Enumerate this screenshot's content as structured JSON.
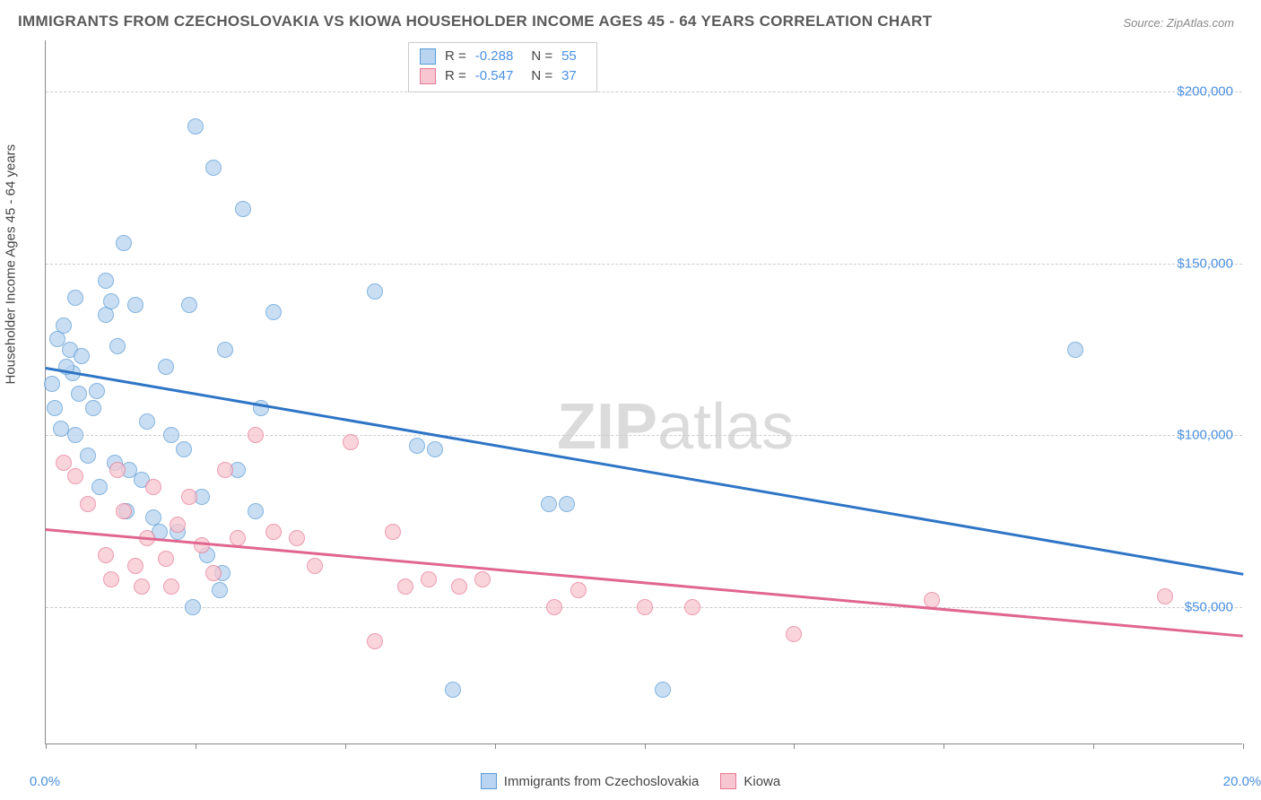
{
  "title": "IMMIGRANTS FROM CZECHOSLOVAKIA VS KIOWA HOUSEHOLDER INCOME AGES 45 - 64 YEARS CORRELATION CHART",
  "source_label": "Source: ZipAtlas.com",
  "watermark_bold": "ZIP",
  "watermark_rest": "atlas",
  "chart": {
    "type": "scatter-with-trend",
    "background_color": "#ffffff",
    "grid_color": "#cccccc",
    "axis_color": "#888888",
    "tick_label_color": "#4a90e2",
    "text_color": "#444444",
    "xlim": [
      0,
      20
    ],
    "ylim": [
      10000,
      215000
    ],
    "ylabel": "Householder Income Ages 45 - 64 years",
    "label_fontsize": 15,
    "title_fontsize": 17,
    "x_ticks": [
      0,
      2.5,
      5,
      7.5,
      10,
      12.5,
      15,
      17.5,
      20
    ],
    "x_tick_labels": {
      "0": "0.0%",
      "20": "20.0%"
    },
    "y_gridlines": [
      50000,
      100000,
      150000,
      200000
    ],
    "y_tick_labels": {
      "50000": "$50,000",
      "100000": "$100,000",
      "150000": "$150,000",
      "200000": "$200,000"
    },
    "point_radius": 9,
    "point_stroke_width": 1,
    "series": [
      {
        "name": "Immigrants from Czechoslovakia",
        "fill": "#b8d4f0",
        "stroke": "#5b9bd5",
        "fill_opacity": 0.75,
        "R_label": "R =",
        "R_value": "-0.288",
        "N_label": "N =",
        "N_value": "55",
        "trend": {
          "x1": 0,
          "y1": 120000,
          "x2": 20,
          "y2": 60000,
          "color": "#2e75c6",
          "width": 2.5
        },
        "points": [
          [
            6.5,
            96000
          ],
          [
            0.2,
            128000
          ],
          [
            0.3,
            132000
          ],
          [
            0.4,
            125000
          ],
          [
            0.45,
            118000
          ],
          [
            0.5,
            140000
          ],
          [
            0.6,
            123000
          ],
          [
            0.7,
            94000
          ],
          [
            0.8,
            108000
          ],
          [
            0.85,
            113000
          ],
          [
            1.0,
            145000
          ],
          [
            1.0,
            135000
          ],
          [
            1.1,
            139000
          ],
          [
            1.2,
            126000
          ],
          [
            1.3,
            156000
          ],
          [
            1.4,
            90000
          ],
          [
            1.5,
            138000
          ],
          [
            1.6,
            87000
          ],
          [
            1.7,
            104000
          ],
          [
            1.8,
            76000
          ],
          [
            1.9,
            72000
          ],
          [
            2.0,
            120000
          ],
          [
            2.1,
            100000
          ],
          [
            2.3,
            96000
          ],
          [
            2.5,
            190000
          ],
          [
            2.6,
            82000
          ],
          [
            2.7,
            65000
          ],
          [
            2.8,
            178000
          ],
          [
            2.9,
            55000
          ],
          [
            3.0,
            125000
          ],
          [
            3.2,
            90000
          ],
          [
            3.3,
            166000
          ],
          [
            3.5,
            78000
          ],
          [
            3.6,
            108000
          ],
          [
            3.8,
            136000
          ],
          [
            5.5,
            142000
          ],
          [
            6.2,
            97000
          ],
          [
            6.8,
            26000
          ],
          [
            8.4,
            80000
          ],
          [
            8.7,
            80000
          ],
          [
            10.3,
            26000
          ],
          [
            17.2,
            125000
          ],
          [
            0.25,
            102000
          ],
          [
            0.5,
            100000
          ],
          [
            0.9,
            85000
          ],
          [
            1.15,
            92000
          ],
          [
            1.35,
            78000
          ],
          [
            2.2,
            72000
          ],
          [
            2.4,
            138000
          ],
          [
            2.45,
            50000
          ],
          [
            0.1,
            115000
          ],
          [
            0.15,
            108000
          ],
          [
            0.35,
            120000
          ],
          [
            0.55,
            112000
          ],
          [
            2.95,
            60000
          ]
        ]
      },
      {
        "name": "Kiowa",
        "fill": "#f7c6d0",
        "stroke": "#e77a95",
        "fill_opacity": 0.75,
        "R_label": "R =",
        "R_value": "-0.547",
        "N_label": "N =",
        "N_value": "37",
        "trend": {
          "x1": 0,
          "y1": 73000,
          "x2": 20,
          "y2": 42000,
          "color": "#e06690",
          "width": 2.5
        },
        "points": [
          [
            0.3,
            92000
          ],
          [
            0.5,
            88000
          ],
          [
            0.7,
            80000
          ],
          [
            1.0,
            65000
          ],
          [
            1.2,
            90000
          ],
          [
            1.3,
            78000
          ],
          [
            1.5,
            62000
          ],
          [
            1.7,
            70000
          ],
          [
            1.8,
            85000
          ],
          [
            2.0,
            64000
          ],
          [
            2.2,
            74000
          ],
          [
            2.4,
            82000
          ],
          [
            2.6,
            68000
          ],
          [
            2.8,
            60000
          ],
          [
            3.0,
            90000
          ],
          [
            3.2,
            70000
          ],
          [
            3.5,
            100000
          ],
          [
            3.8,
            72000
          ],
          [
            4.2,
            70000
          ],
          [
            5.1,
            98000
          ],
          [
            5.5,
            40000
          ],
          [
            5.8,
            72000
          ],
          [
            6.0,
            56000
          ],
          [
            6.4,
            58000
          ],
          [
            6.9,
            56000
          ],
          [
            7.3,
            58000
          ],
          [
            8.5,
            50000
          ],
          [
            8.9,
            55000
          ],
          [
            10.0,
            50000
          ],
          [
            10.8,
            50000
          ],
          [
            12.5,
            42000
          ],
          [
            14.8,
            52000
          ],
          [
            18.7,
            53000
          ],
          [
            1.1,
            58000
          ],
          [
            1.6,
            56000
          ],
          [
            2.1,
            56000
          ],
          [
            4.5,
            62000
          ]
        ]
      }
    ],
    "bottom_legend": [
      {
        "label": "Immigrants from Czechoslovakia",
        "fill": "#b8d4f0",
        "stroke": "#5b9bd5"
      },
      {
        "label": "Kiowa",
        "fill": "#f7c6d0",
        "stroke": "#e77a95"
      }
    ]
  }
}
